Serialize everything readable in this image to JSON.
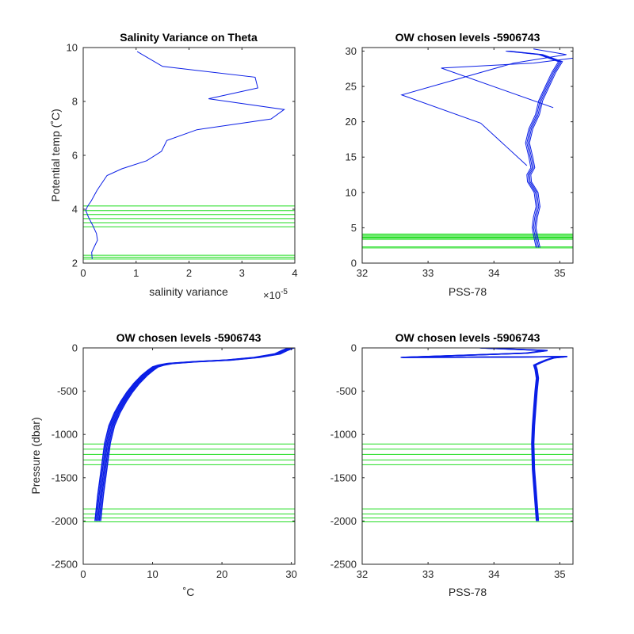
{
  "figure": {
    "colors": {
      "profile": "#0a1ee6",
      "levels": "#22dd22",
      "axes": "#262626"
    }
  },
  "chart_data": [
    {
      "type": "line",
      "title": "Salinity Variance on Theta",
      "xlabel": "salinity variance",
      "ylabel": "Potential temp (˚C)",
      "x_exponent_label": "×10",
      "x_exponent_power": "-5",
      "x_scale": 1e-05,
      "xlim": [
        0,
        4
      ],
      "ylim": [
        2,
        10
      ],
      "xticks": [
        0,
        1,
        2,
        3,
        4
      ],
      "yticks": [
        2,
        4,
        6,
        8,
        10
      ],
      "series": [
        {
          "x": [
            0.17,
            0.16,
            0.22,
            0.27,
            0.25,
            0.18,
            0.1,
            0.05,
            0.08,
            0.15,
            0.26,
            0.45,
            0.73,
            1.2,
            1.48,
            1.58,
            2.15,
            3.55,
            3.8,
            2.37,
            3.3,
            3.25,
            1.5,
            1.02
          ],
          "y": [
            2.15,
            2.4,
            2.65,
            2.85,
            3.1,
            3.4,
            3.7,
            3.95,
            4.1,
            4.3,
            4.7,
            5.25,
            5.5,
            5.8,
            6.15,
            6.55,
            6.95,
            7.35,
            7.7,
            8.1,
            8.5,
            8.9,
            9.3,
            9.85
          ]
        }
      ],
      "levels": [
        2.15,
        2.22,
        2.29,
        3.35,
        3.5,
        3.65,
        3.8,
        3.95,
        4.12
      ]
    },
    {
      "type": "line",
      "title": "OW chosen levels -5906743",
      "xlabel": "PSS-78",
      "ylabel": "",
      "xlim": [
        32,
        35.2
      ],
      "ylim": [
        0,
        30.5
      ],
      "xticks": [
        32,
        33,
        34,
        35
      ],
      "yticks": [
        0,
        5,
        10,
        15,
        20,
        25,
        30
      ],
      "series": [
        {
          "x": [
            34.66,
            34.63,
            34.6,
            34.62,
            34.66,
            34.63,
            34.53,
            34.52,
            34.58,
            34.55,
            34.5,
            34.55,
            34.65,
            34.7,
            34.8,
            34.9,
            35.0,
            34.7,
            34.2
          ],
          "y": [
            2.2,
            3.5,
            5.0,
            6.5,
            8.0,
            10.0,
            11.5,
            12.5,
            13.5,
            15.0,
            17.0,
            19.0,
            21.0,
            23.0,
            25.0,
            27.0,
            28.5,
            29.5,
            30.0
          ]
        },
        {
          "x": [
            34.5,
            33.8,
            32.6,
            34.3,
            35.1,
            34.6
          ],
          "y": [
            13.8,
            19.8,
            23.8,
            28.3,
            29.5,
            30.3
          ]
        },
        {
          "x": [
            34.9,
            33.2,
            34.6,
            35.2
          ],
          "y": [
            22.0,
            27.6,
            28.3,
            29.0
          ]
        }
      ],
      "levels": [
        2.15,
        2.3,
        3.35,
        3.5,
        3.65,
        3.8,
        3.95,
        4.12
      ]
    },
    {
      "type": "line",
      "title": "OW chosen levels -5906743",
      "xlabel": "˚C",
      "ylabel": "Pressure (dbar)",
      "xlim": [
        0,
        30.5
      ],
      "ylim": [
        -2500,
        0
      ],
      "xticks": [
        0,
        10,
        20,
        30
      ],
      "yticks": [
        -2500,
        -2000,
        -1500,
        -1000,
        -500,
        0
      ],
      "series": [
        {
          "x": [
            2.1,
            2.5,
            3.0,
            3.5,
            4.1,
            4.9,
            5.8,
            6.7,
            7.7,
            8.8,
            9.7,
            10.4,
            11.2,
            12.5,
            16.0,
            21.0,
            25.0,
            28.0,
            29.0,
            30.0
          ],
          "y": [
            -2000,
            -1700,
            -1400,
            -1100,
            -900,
            -750,
            -620,
            -510,
            -410,
            -320,
            -260,
            -220,
            -200,
            -180,
            -160,
            -140,
            -110,
            -70,
            -30,
            0
          ]
        }
      ],
      "levels": [
        -1110,
        -1170,
        -1230,
        -1295,
        -1350,
        -1860,
        -1920,
        -1965,
        -2010
      ]
    },
    {
      "type": "line",
      "title": "OW chosen levels -5906743",
      "xlabel": "PSS-78",
      "ylabel": "",
      "xlim": [
        32,
        35.2
      ],
      "ylim": [
        -2500,
        0
      ],
      "xticks": [
        32,
        33,
        34,
        35
      ],
      "yticks": [
        -2500,
        -2000,
        -1500,
        -1000,
        -500,
        0
      ],
      "series": [
        {
          "x": [
            34.66,
            34.63,
            34.6,
            34.59,
            34.6,
            34.62,
            34.64,
            34.66,
            34.64,
            34.62,
            34.7,
            34.8,
            34.9,
            35.1,
            34.4,
            32.6,
            34.5,
            34.8,
            33.8
          ],
          "y": [
            -2000,
            -1700,
            -1400,
            -1100,
            -900,
            -700,
            -500,
            -350,
            -250,
            -200,
            -170,
            -140,
            -115,
            -100,
            -105,
            -110,
            -60,
            -30,
            0
          ]
        }
      ],
      "levels": [
        -1110,
        -1170,
        -1230,
        -1295,
        -1350,
        -1860,
        -1920,
        -1965,
        -2010
      ]
    }
  ]
}
